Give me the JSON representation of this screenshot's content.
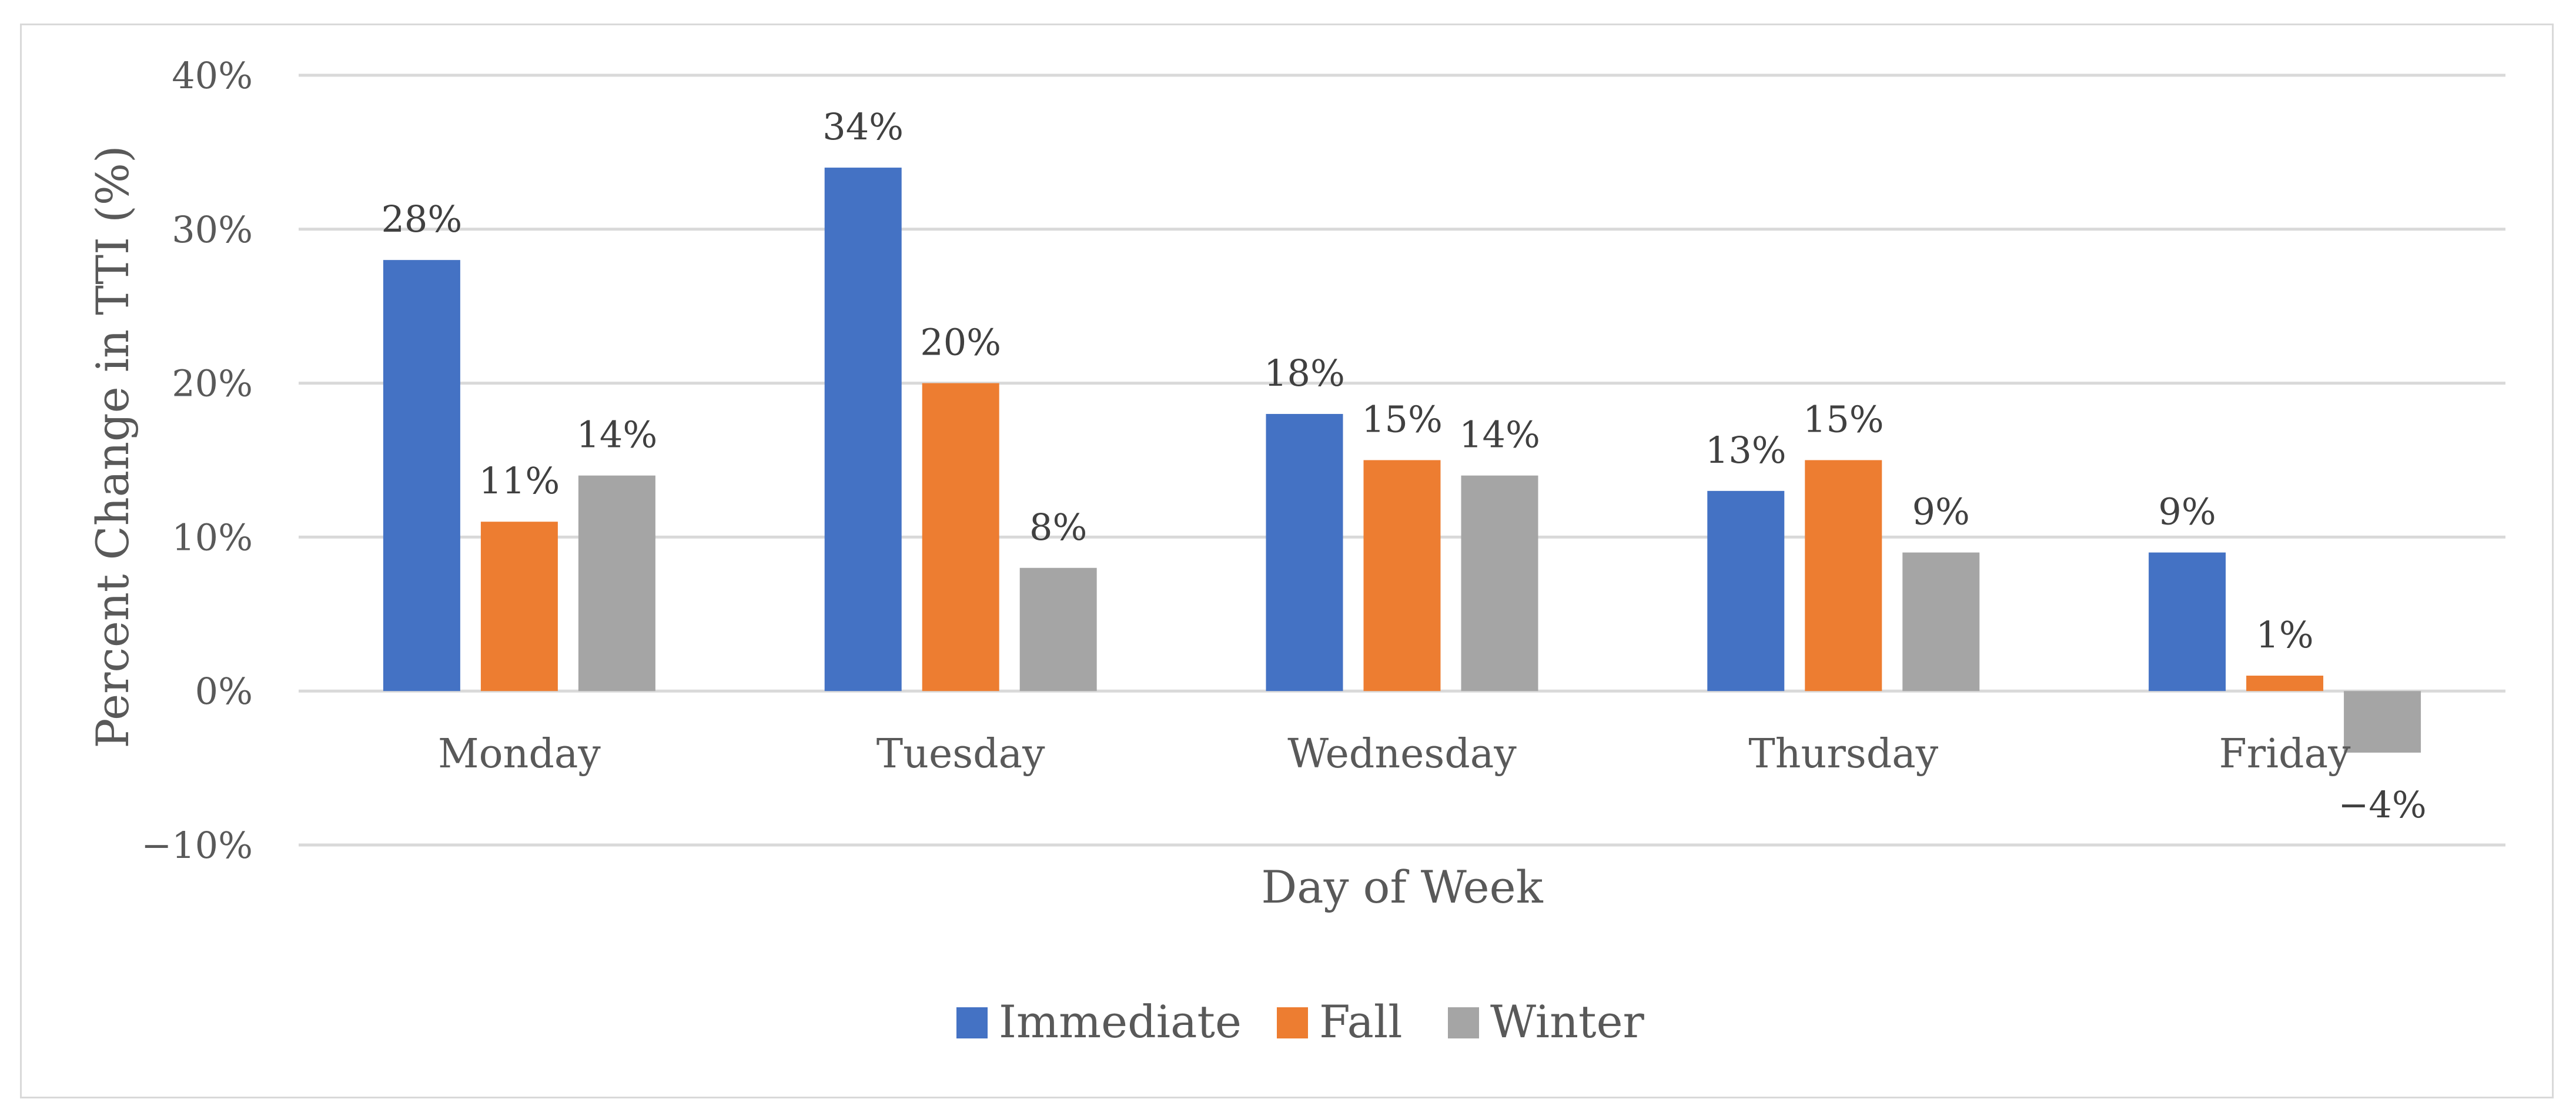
{
  "chart_data": {
    "type": "bar",
    "title": "",
    "xlabel": "Day of Week",
    "ylabel": "Percent Change in TTI  (%)",
    "categories": [
      "Monday",
      "Tuesday",
      "Wednesday",
      "Thursday",
      "Friday"
    ],
    "ylim": [
      -10,
      40
    ],
    "yticks": [
      -10,
      0,
      10,
      20,
      30,
      40
    ],
    "ytick_labels": [
      "−10%",
      "0%",
      "10%",
      "20%",
      "30%",
      "40%"
    ],
    "grid": true,
    "legend_position": "bottom",
    "series": [
      {
        "name": "Immediate",
        "color": "#4472c4",
        "values": [
          28,
          34,
          18,
          13,
          9
        ],
        "labels": [
          "28%",
          "34%",
          "18%",
          "13%",
          "9%"
        ]
      },
      {
        "name": "Fall",
        "color": "#ed7d31",
        "values": [
          11,
          20,
          15,
          15,
          1
        ],
        "labels": [
          "11%",
          "20%",
          "15%",
          "15%",
          "1%"
        ]
      },
      {
        "name": "Winter",
        "color": "#a5a5a5",
        "values": [
          14,
          8,
          14,
          9,
          -4
        ],
        "labels": [
          "14%",
          "8%",
          "14%",
          "9%",
          "−4%"
        ]
      }
    ]
  }
}
